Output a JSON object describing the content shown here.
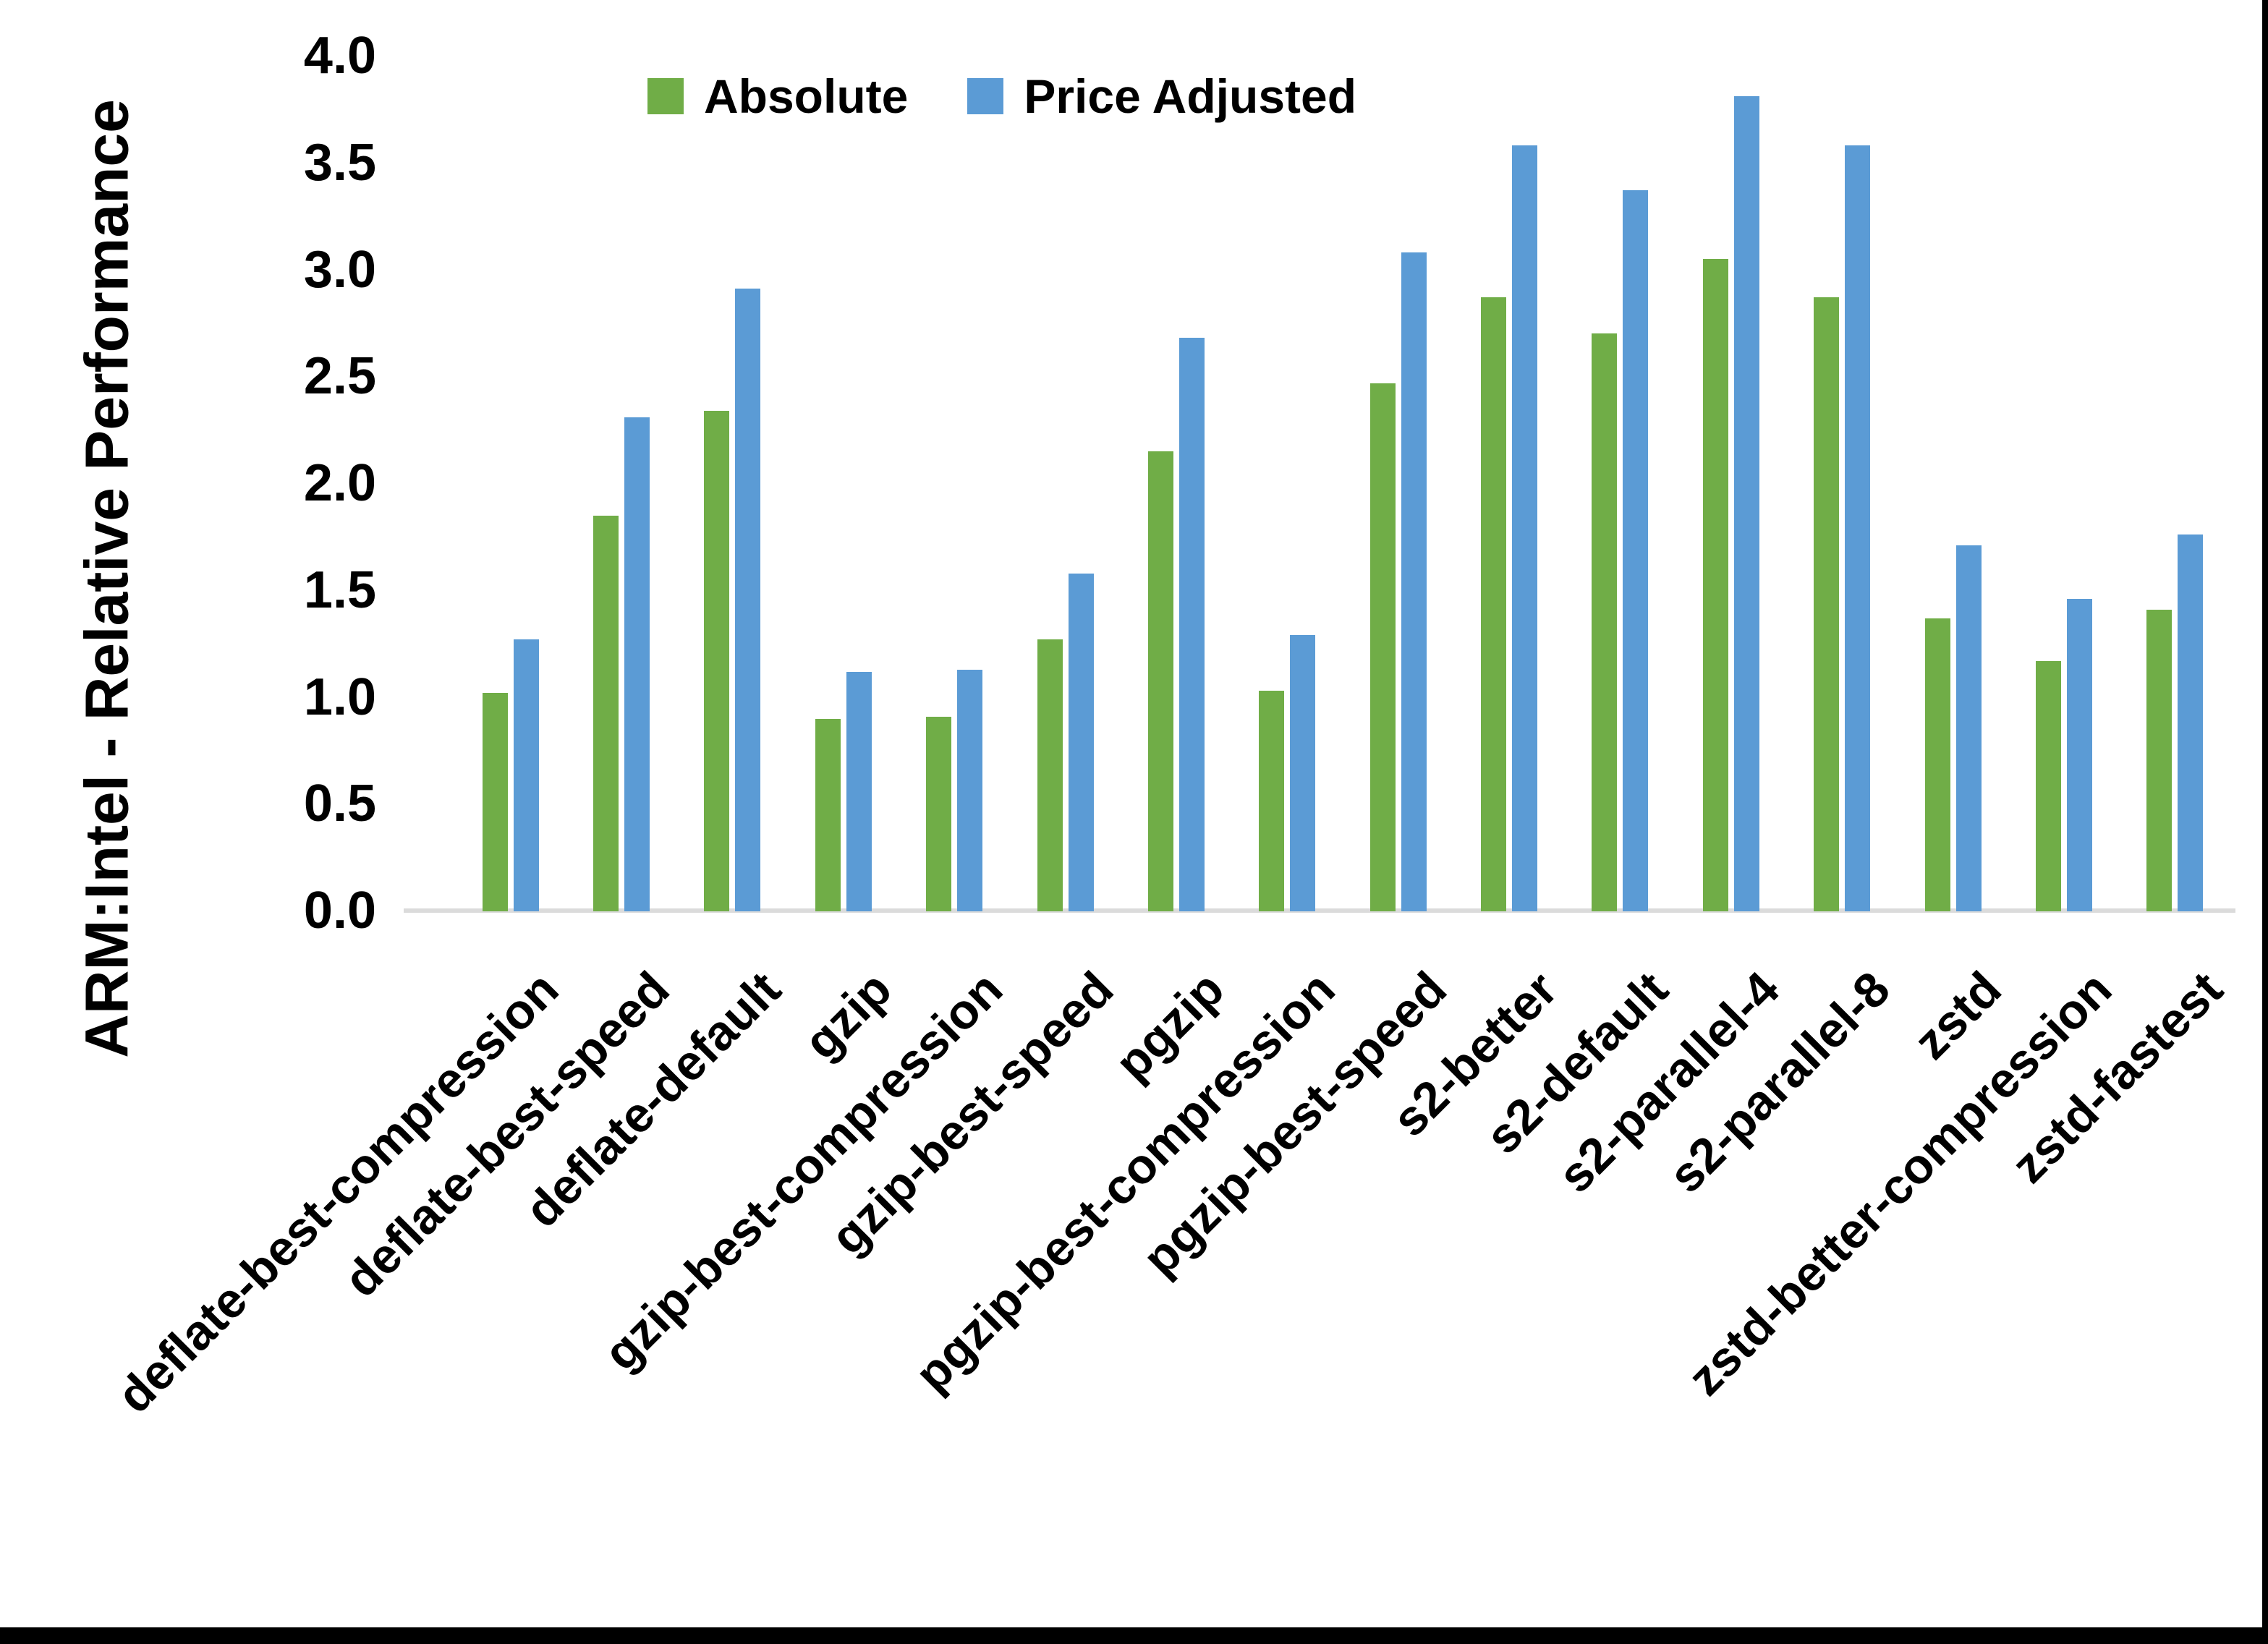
{
  "page": {
    "background": "#FFFFFF",
    "bottom_border_color": "#000000",
    "right_border_color": "#000000",
    "axis_line_color": "#DBDBDB"
  },
  "chart_data": {
    "type": "bar",
    "title": "",
    "xlabel": "",
    "ylabel": "ARM:Intel - Relative Performance",
    "ylim": [
      0.0,
      4.0
    ],
    "ytick_step": 0.5,
    "yticks": [
      "0.0",
      "0.5",
      "1.0",
      "1.5",
      "2.0",
      "2.5",
      "3.0",
      "3.5",
      "4.0"
    ],
    "grid": false,
    "legend_position": "top",
    "categories": [
      "deflate-best-compression",
      "deflate-best-speed",
      "deflate-default",
      "gzip",
      "gzip-best-compression",
      "gzip-best-speed",
      "pgzip",
      "pgzip-best-compression",
      "pgzip-best-speed",
      "s2-better",
      "s2-default",
      "s2-parallel-4",
      "s2-parallel-8",
      "zstd",
      "zstd-better-compression",
      "zstd-fastest"
    ],
    "series": [
      {
        "name": "Absolute",
        "color": "#70AD47",
        "values": [
          1.02,
          1.85,
          2.34,
          0.9,
          0.91,
          1.27,
          2.15,
          1.03,
          2.47,
          2.87,
          2.7,
          3.05,
          2.87,
          1.37,
          1.17,
          1.41
        ]
      },
      {
        "name": "Price Adjusted",
        "color": "#5B9BD5",
        "values": [
          1.27,
          2.31,
          2.91,
          1.12,
          1.13,
          1.58,
          2.68,
          1.29,
          3.08,
          3.58,
          3.37,
          3.81,
          3.58,
          1.71,
          1.46,
          1.76
        ]
      }
    ]
  }
}
